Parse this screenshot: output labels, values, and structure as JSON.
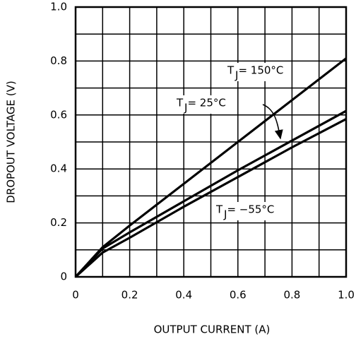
{
  "chart_data": {
    "type": "line",
    "x_label": "OUTPUT CURRENT (A)",
    "y_label": "DROPOUT VOLTAGE (V)",
    "x": [
      0,
      0.1,
      0.2,
      0.4,
      0.6,
      0.8,
      1.0
    ],
    "series": [
      {
        "color": "#000000",
        "values": [
          0,
          0.11,
          0.19,
          0.345,
          0.5,
          0.655,
          0.81
        ]
      },
      {
        "color": "#000000",
        "values": [
          0,
          0.105,
          0.165,
          0.28,
          0.395,
          0.505,
          0.615
        ]
      },
      {
        "color": "#000000",
        "values": [
          0,
          0.09,
          0.145,
          0.26,
          0.37,
          0.48,
          0.585
        ]
      }
    ],
    "annotations": [
      {
        "symbol": "T",
        "subscript": "J",
        "text": " = 150°C"
      },
      {
        "symbol": "T",
        "subscript": "J",
        "text": " = 25°C"
      },
      {
        "symbol": "T",
        "subscript": "J",
        "text": " = −55°C"
      }
    ],
    "xlim": [
      0,
      1.0
    ],
    "ylim": [
      0,
      1.0
    ],
    "xticks": [
      0,
      0.2,
      0.4,
      0.6,
      0.8,
      {
        "value": 1.0,
        "label": "1.0"
      }
    ],
    "yticks": [
      0,
      0.2,
      0.4,
      0.6,
      0.8,
      {
        "value": 1.0,
        "label": "1.0"
      }
    ],
    "x_minor_ticks": [
      0.1,
      0.3,
      0.5,
      0.7,
      0.9
    ],
    "y_minor_ticks": [
      0.1,
      0.3,
      0.5,
      0.7,
      0.9
    ],
    "grid": true
  }
}
